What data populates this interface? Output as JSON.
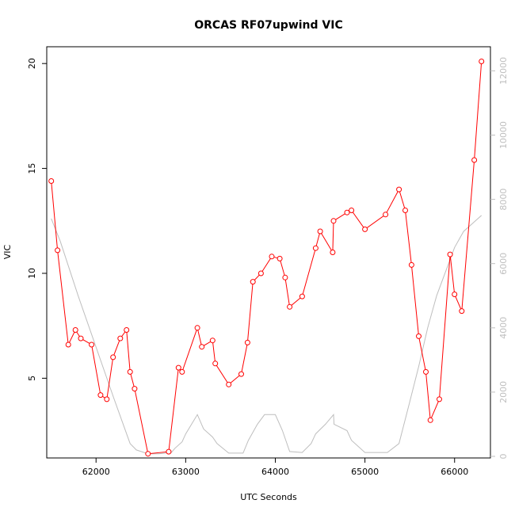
{
  "chart_data": {
    "type": "line",
    "title": "ORCAS RF07upwind VIC",
    "xlabel": "UTC Seconds",
    "ylabel": "VIC",
    "xlim": [
      61450,
      66400
    ],
    "ylim": [
      1.2,
      20.8
    ],
    "y2lim": [
      -50,
      12750
    ],
    "xticks": [
      62000,
      63000,
      64000,
      65000,
      66000
    ],
    "yticks": [
      5,
      10,
      15,
      20
    ],
    "y2ticks": [
      0,
      2000,
      4000,
      6000,
      8000,
      10000,
      12000
    ],
    "grid": false,
    "colors": {
      "vic": "#ff0000",
      "altitude": "#bebebe"
    },
    "series": [
      {
        "axis": "left",
        "color": "#ff0000",
        "marker": "open-circle",
        "x": [
          61500,
          61570,
          61690,
          61770,
          61830,
          61950,
          62050,
          62120,
          62190,
          62270,
          62340,
          62380,
          62430,
          62580,
          62810,
          62920,
          62960,
          63130,
          63180,
          63300,
          63330,
          63480,
          63620,
          63690,
          63750,
          63840,
          63960,
          64050,
          64110,
          64160,
          64300,
          64450,
          64500,
          64640,
          64650,
          64800,
          64850,
          65000,
          65230,
          65380,
          65450,
          65520,
          65600,
          65680,
          65730,
          65830,
          65950,
          66000,
          66080,
          66220,
          66300
        ],
        "y": [
          14.4,
          11.1,
          6.6,
          7.3,
          6.9,
          6.6,
          4.2,
          4.0,
          6.0,
          6.9,
          7.3,
          5.3,
          4.5,
          1.4,
          1.5,
          5.5,
          5.3,
          7.4,
          6.5,
          6.8,
          5.7,
          4.7,
          5.2,
          6.7,
          9.6,
          10.0,
          10.8,
          10.7,
          9.8,
          8.4,
          8.9,
          11.2,
          12.0,
          11.0,
          12.5,
          12.9,
          13.0,
          12.1,
          12.8,
          14.0,
          13.0,
          10.4,
          7.0,
          5.3,
          3.0,
          4.0,
          10.9,
          9.0,
          8.2,
          15.4,
          20.1
        ]
      },
      {
        "axis": "right",
        "color": "#bebebe",
        "marker": "none",
        "x": [
          61500,
          61600,
          61800,
          62000,
          62200,
          62380,
          62450,
          62580,
          62700,
          62840,
          62880,
          62960,
          63000,
          63130,
          63200,
          63300,
          63350,
          63480,
          63640,
          63700,
          63800,
          63880,
          64000,
          64080,
          64160,
          64300,
          64400,
          64450,
          64560,
          64650,
          64655,
          64800,
          64850,
          65000,
          65250,
          65380,
          65500,
          65600,
          65700,
          65800,
          66000,
          66100,
          66300
        ],
        "y": [
          7400,
          6700,
          5000,
          3400,
          1800,
          400,
          200,
          80,
          80,
          120,
          250,
          450,
          700,
          1300,
          850,
          600,
          400,
          100,
          100,
          500,
          1000,
          1300,
          1300,
          800,
          150,
          120,
          400,
          700,
          1000,
          1300,
          1000,
          800,
          500,
          120,
          120,
          400,
          1700,
          2800,
          4000,
          5000,
          6500,
          7000,
          7500
        ]
      }
    ]
  }
}
